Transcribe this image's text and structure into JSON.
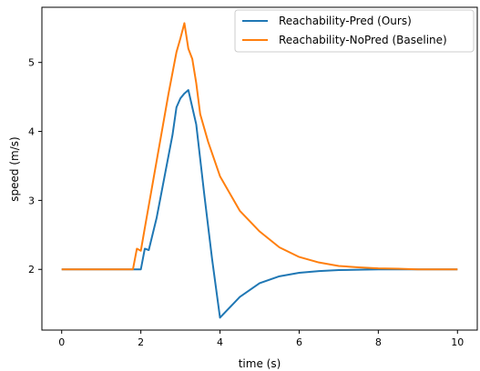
{
  "chart_data": {
    "type": "line",
    "title": "",
    "xlabel": "time (s)",
    "ylabel": "speed (m/s)",
    "xlim": [
      -0.5,
      10.5
    ],
    "ylim": [
      1.12,
      5.8
    ],
    "xticks": [
      0,
      2,
      4,
      6,
      8,
      10
    ],
    "yticks": [
      2,
      3,
      4,
      5
    ],
    "grid": false,
    "legend": "top-right",
    "series": [
      {
        "name": "Reachability-Pred (Ours)",
        "color": "#1f77b4",
        "x": [
          0,
          1.8,
          1.9,
          2.0,
          2.1,
          2.2,
          2.4,
          2.6,
          2.8,
          2.9,
          3.0,
          3.1,
          3.2,
          3.3,
          3.4,
          3.6,
          3.8,
          4.0,
          4.2,
          4.5,
          5.0,
          5.5,
          6.0,
          6.5,
          7.0,
          7.5,
          8.0,
          8.5,
          9.0,
          9.5,
          10.0
        ],
        "values": [
          2.0,
          2.0,
          2.0,
          2.0,
          2.3,
          2.28,
          2.75,
          3.35,
          3.95,
          4.35,
          4.48,
          4.55,
          4.6,
          4.35,
          4.1,
          3.1,
          2.15,
          1.3,
          1.42,
          1.6,
          1.8,
          1.9,
          1.95,
          1.975,
          1.99,
          1.995,
          2.0,
          2.0,
          2.0,
          2.0,
          2.0
        ]
      },
      {
        "name": "Reachability-NoPred (Baseline)",
        "color": "#ff7f0e",
        "x": [
          0,
          1.8,
          1.9,
          2.0,
          2.1,
          2.3,
          2.5,
          2.7,
          2.9,
          3.0,
          3.1,
          3.2,
          3.3,
          3.4,
          3.5,
          3.7,
          4.0,
          4.5,
          5.0,
          5.5,
          6.0,
          6.5,
          7.0,
          7.5,
          8.0,
          8.5,
          9.0,
          9.5,
          10.0
        ],
        "values": [
          2.0,
          2.0,
          2.3,
          2.27,
          2.6,
          3.25,
          3.9,
          4.55,
          5.15,
          5.35,
          5.57,
          5.2,
          5.05,
          4.7,
          4.25,
          3.85,
          3.35,
          2.85,
          2.55,
          2.32,
          2.18,
          2.1,
          2.05,
          2.03,
          2.015,
          2.01,
          2.0,
          2.0,
          2.0
        ]
      }
    ]
  }
}
